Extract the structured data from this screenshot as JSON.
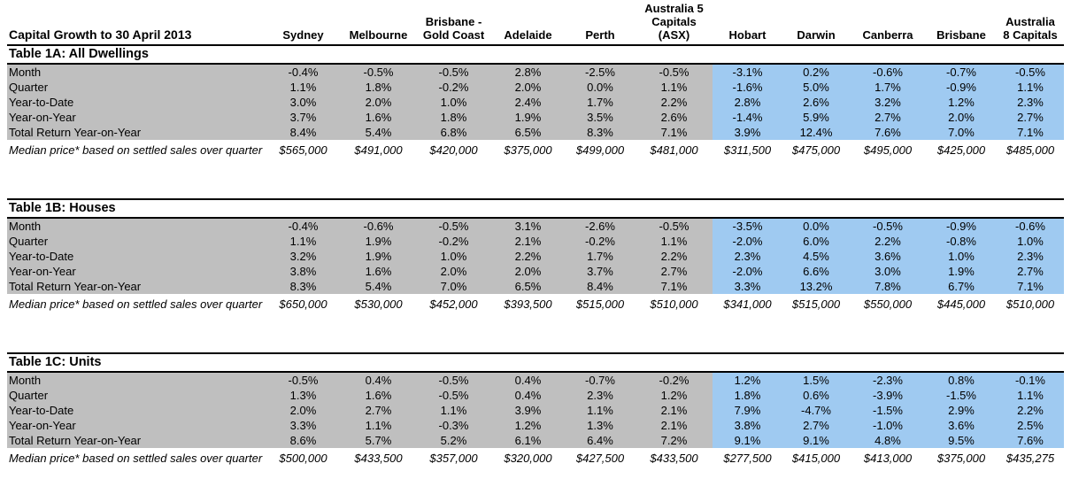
{
  "report": {
    "title": "Capital Growth to 30 April 2013",
    "columns": [
      "Sydney",
      "Melbourne",
      "Brisbane -\nGold Coast",
      "Adelaide",
      "Perth",
      "Australia 5\nCapitals\n(ASX)",
      "Hobart",
      "Darwin",
      "Canberra",
      "Brisbane",
      "Australia\n8 Capitals"
    ],
    "row_labels": [
      "Month",
      "Quarter",
      "Year-to-Date",
      "Year-on-Year",
      "Total Return Year-on-Year"
    ],
    "median_label": "Median price* based on settled sales over quarter",
    "colors": {
      "gray_fill": "#BFBFBF",
      "blue_fill": "#9FCAF1",
      "border": "#000000"
    },
    "tables": [
      {
        "title": "Table 1A: All Dwellings",
        "rows": [
          [
            "-0.4%",
            "-0.5%",
            "-0.5%",
            "2.8%",
            "-2.5%",
            "-0.5%",
            "-3.1%",
            "0.2%",
            "-0.6%",
            "-0.7%",
            "-0.5%"
          ],
          [
            "1.1%",
            "1.8%",
            "-0.2%",
            "2.0%",
            "0.0%",
            "1.1%",
            "-1.6%",
            "5.0%",
            "1.7%",
            "-0.9%",
            "1.1%"
          ],
          [
            "3.0%",
            "2.0%",
            "1.0%",
            "2.4%",
            "1.7%",
            "2.2%",
            "2.8%",
            "2.6%",
            "3.2%",
            "1.2%",
            "2.3%"
          ],
          [
            "3.7%",
            "1.6%",
            "1.8%",
            "1.9%",
            "3.5%",
            "2.6%",
            "-1.4%",
            "5.9%",
            "2.7%",
            "2.0%",
            "2.7%"
          ],
          [
            "8.4%",
            "5.4%",
            "6.8%",
            "6.5%",
            "8.3%",
            "7.1%",
            "3.9%",
            "12.4%",
            "7.6%",
            "7.0%",
            "7.1%"
          ]
        ],
        "median": [
          "$565,000",
          "$491,000",
          "$420,000",
          "$375,000",
          "$499,000",
          "$481,000",
          "$311,500",
          "$475,000",
          "$495,000",
          "$425,000",
          "$485,000"
        ]
      },
      {
        "title": "Table 1B: Houses",
        "rows": [
          [
            "-0.4%",
            "-0.6%",
            "-0.5%",
            "3.1%",
            "-2.6%",
            "-0.5%",
            "-3.5%",
            "0.0%",
            "-0.5%",
            "-0.9%",
            "-0.6%"
          ],
          [
            "1.1%",
            "1.9%",
            "-0.2%",
            "2.1%",
            "-0.2%",
            "1.1%",
            "-2.0%",
            "6.0%",
            "2.2%",
            "-0.8%",
            "1.0%"
          ],
          [
            "3.2%",
            "1.9%",
            "1.0%",
            "2.2%",
            "1.7%",
            "2.2%",
            "2.3%",
            "4.5%",
            "3.6%",
            "1.0%",
            "2.3%"
          ],
          [
            "3.8%",
            "1.6%",
            "2.0%",
            "2.0%",
            "3.7%",
            "2.7%",
            "-2.0%",
            "6.6%",
            "3.0%",
            "1.9%",
            "2.7%"
          ],
          [
            "8.3%",
            "5.4%",
            "7.0%",
            "6.5%",
            "8.4%",
            "7.1%",
            "3.3%",
            "13.2%",
            "7.8%",
            "6.7%",
            "7.1%"
          ]
        ],
        "median": [
          "$650,000",
          "$530,000",
          "$452,000",
          "$393,500",
          "$515,000",
          "$510,000",
          "$341,000",
          "$515,000",
          "$550,000",
          "$445,000",
          "$510,000"
        ]
      },
      {
        "title": "Table 1C: Units",
        "rows": [
          [
            "-0.5%",
            "0.4%",
            "-0.5%",
            "0.4%",
            "-0.7%",
            "-0.2%",
            "1.2%",
            "1.5%",
            "-2.3%",
            "0.8%",
            "-0.1%"
          ],
          [
            "1.3%",
            "1.6%",
            "-0.5%",
            "0.4%",
            "2.3%",
            "1.2%",
            "1.8%",
            "0.6%",
            "-3.9%",
            "-1.5%",
            "1.1%"
          ],
          [
            "2.0%",
            "2.7%",
            "1.1%",
            "3.9%",
            "1.1%",
            "2.1%",
            "7.9%",
            "-4.7%",
            "-1.5%",
            "2.9%",
            "2.2%"
          ],
          [
            "3.3%",
            "1.1%",
            "-0.3%",
            "1.2%",
            "1.3%",
            "2.1%",
            "3.8%",
            "2.7%",
            "-1.0%",
            "3.6%",
            "2.5%"
          ],
          [
            "8.6%",
            "5.7%",
            "5.2%",
            "6.1%",
            "6.4%",
            "7.2%",
            "9.1%",
            "9.1%",
            "4.8%",
            "9.5%",
            "7.6%"
          ]
        ],
        "median": [
          "$500,000",
          "$433,500",
          "$357,000",
          "$320,000",
          "$427,500",
          "$433,500",
          "$277,500",
          "$415,000",
          "$413,000",
          "$375,000",
          "$435,275"
        ]
      }
    ]
  }
}
